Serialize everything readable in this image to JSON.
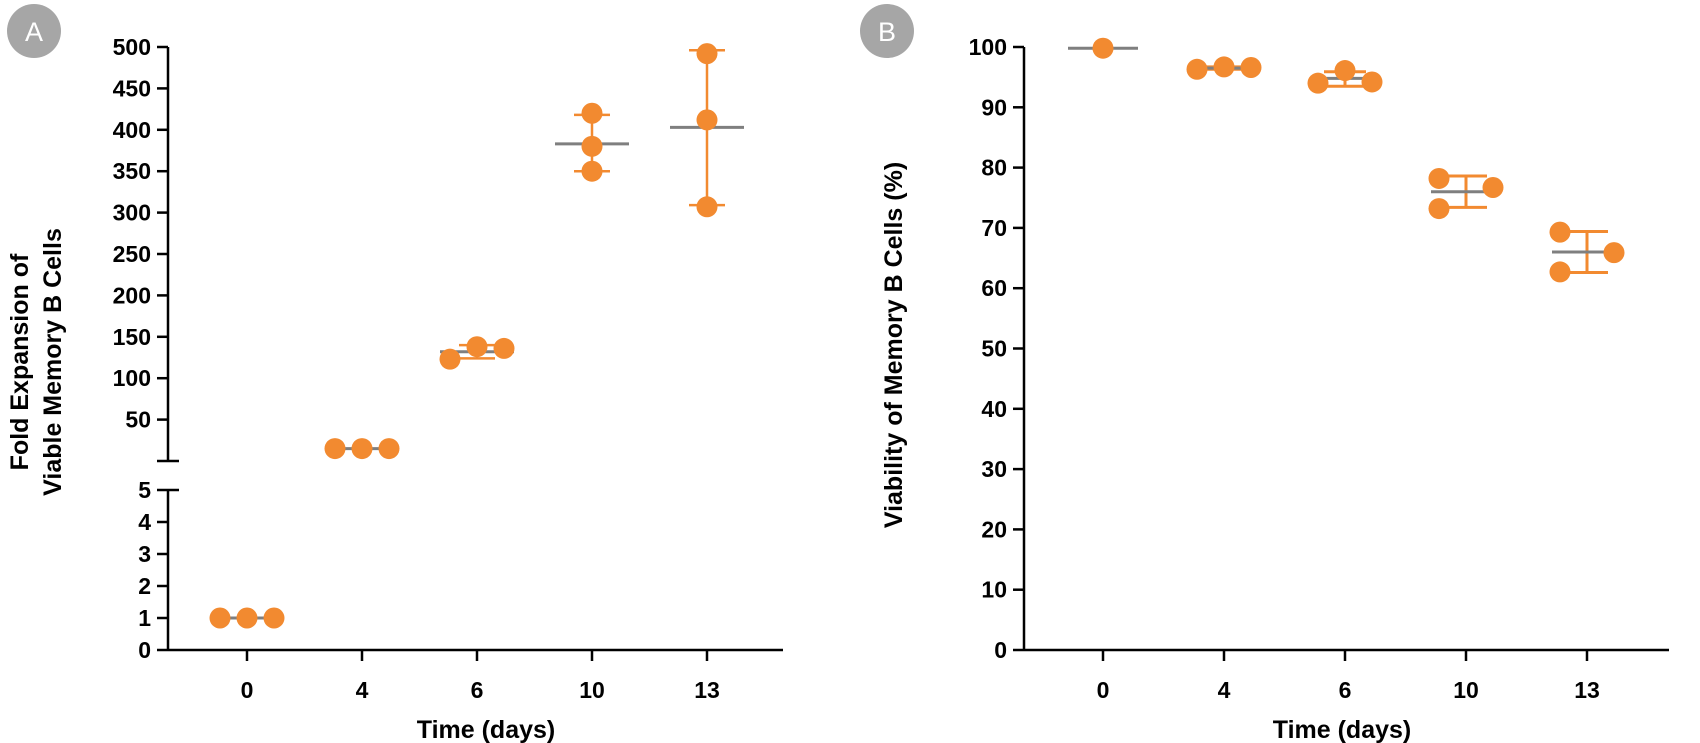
{
  "colors": {
    "points": "#F28A30",
    "mean_line": "#7F7F7F",
    "axis": "#000000",
    "badge": "#A6A6A6"
  },
  "chart_data": [
    {
      "type": "scatter",
      "panel": "A",
      "xlabel": "Time (days)",
      "ylabel_lines": [
        "Fold Expansion of",
        "Viable Memory B Cells"
      ],
      "categories": [
        "0",
        "4",
        "6",
        "10",
        "13"
      ],
      "y_axis_broken": true,
      "lower_segment": {
        "ylim": [
          0,
          5
        ],
        "ticks": [
          "0",
          "1",
          "2",
          "3",
          "4",
          "5"
        ]
      },
      "upper_segment": {
        "ylim": [
          0,
          500
        ],
        "ticks": [
          "50",
          "100",
          "150",
          "200",
          "250",
          "300",
          "350",
          "400",
          "450",
          "500"
        ]
      },
      "groups": [
        {
          "x": "0",
          "points": [
            1,
            1,
            1
          ],
          "mean": 1,
          "error": [
            1,
            1
          ]
        },
        {
          "x": "4",
          "points": [
            15,
            15,
            15
          ],
          "mean": 15,
          "error": [
            15,
            15
          ]
        },
        {
          "x": "6",
          "points": [
            123,
            138,
            136
          ],
          "mean": 132,
          "error": [
            124,
            140
          ]
        },
        {
          "x": "10",
          "points": [
            420,
            380,
            350
          ],
          "mean": 383,
          "error": [
            350,
            418
          ]
        },
        {
          "x": "13",
          "points": [
            492,
            412,
            307
          ],
          "mean": 403,
          "error": [
            309,
            496
          ]
        }
      ],
      "grid": false,
      "legend": "none"
    },
    {
      "type": "scatter",
      "panel": "B",
      "xlabel": "Time (days)",
      "ylabel": "Viability of Memory B Cells (%)",
      "categories": [
        "0",
        "4",
        "6",
        "10",
        "13"
      ],
      "ylim": [
        0,
        100
      ],
      "yticks": [
        "0",
        "10",
        "20",
        "30",
        "40",
        "50",
        "60",
        "70",
        "80",
        "90",
        "100"
      ],
      "groups": [
        {
          "x": "0",
          "points": [
            99.8
          ],
          "mean": 99.8,
          "error": [
            99.8,
            99.8
          ]
        },
        {
          "x": "4",
          "points": [
            96.3,
            96.7,
            96.6
          ],
          "mean": 96.5,
          "error": [
            96.3,
            96.7
          ]
        },
        {
          "x": "6",
          "points": [
            94.0,
            96.1,
            94.2
          ],
          "mean": 94.8,
          "error": [
            93.5,
            95.9
          ]
        },
        {
          "x": "10",
          "points": [
            78.2,
            73.2,
            76.7
          ],
          "mean": 76.0,
          "error": [
            73.4,
            78.6
          ]
        },
        {
          "x": "13",
          "points": [
            69.3,
            62.7,
            65.9
          ],
          "mean": 66.0,
          "error": [
            62.6,
            69.4
          ]
        }
      ],
      "grid": false,
      "legend": "none"
    }
  ],
  "badges": [
    "A",
    "B"
  ]
}
